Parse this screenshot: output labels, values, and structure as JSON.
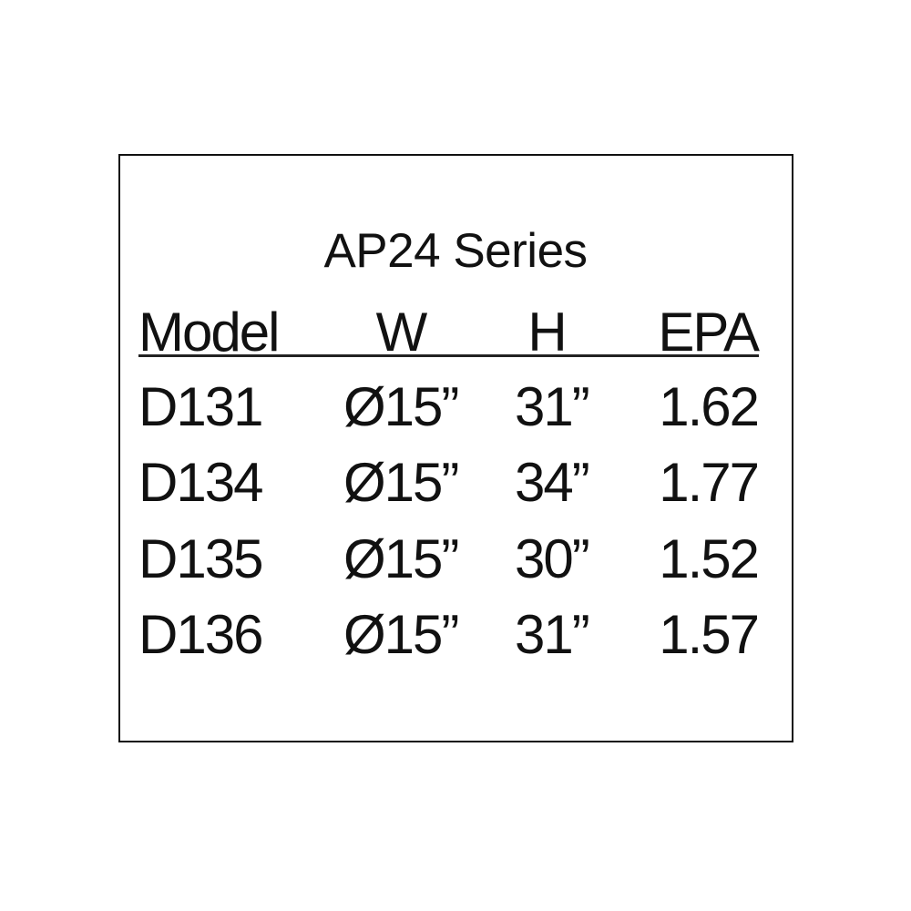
{
  "title": "AP24 Series",
  "headers": {
    "model": "Model",
    "w": "W",
    "h": "H",
    "epa": "EPA"
  },
  "rows": [
    {
      "model": "D131",
      "w": "Ø15”",
      "h": "31”",
      "epa": "1.62"
    },
    {
      "model": "D134",
      "w": "Ø15”",
      "h": "34”",
      "epa": "1.77"
    },
    {
      "model": "D135",
      "w": "Ø15”",
      "h": "30”",
      "epa": "1.52"
    },
    {
      "model": "D136",
      "w": "Ø15”",
      "h": "31”",
      "epa": "1.57"
    }
  ]
}
